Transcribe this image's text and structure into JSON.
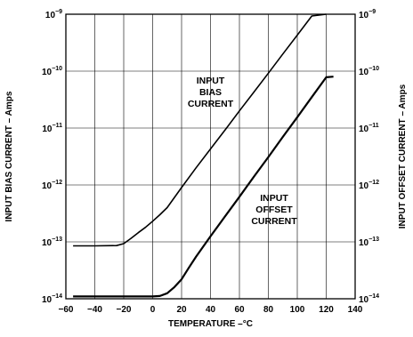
{
  "chart_data": {
    "type": "line",
    "xlabel": "TEMPERATURE –°C",
    "ylabel_left": "INPUT BIAS CURRENT – Amps",
    "ylabel_right": "INPUT OFFSET CURRENT – Amps",
    "xlim": [
      -60,
      140
    ],
    "ylim": [
      1e-14,
      1e-09
    ],
    "yscale": "log",
    "grid": true,
    "xticks": [
      -60,
      -40,
      -20,
      0,
      20,
      40,
      60,
      80,
      100,
      120,
      140
    ],
    "xtick_labels": [
      "−60",
      "−40",
      "−20",
      "0",
      "20",
      "40",
      "60",
      "80",
      "100",
      "120",
      "140"
    ],
    "yticks": [
      {
        "base": "10",
        "exp": "−9",
        "value": 1e-09
      },
      {
        "base": "10",
        "exp": "−10",
        "value": 1e-10
      },
      {
        "base": "10",
        "exp": "−11",
        "value": 1e-11
      },
      {
        "base": "10",
        "exp": "−12",
        "value": 1e-12
      },
      {
        "base": "10",
        "exp": "−13",
        "value": 1e-13
      },
      {
        "base": "10",
        "exp": "−14",
        "value": 1e-14
      }
    ],
    "series": [
      {
        "name": "INPUT BIAS CURRENT",
        "x": [
          -55,
          -40,
          -25,
          -20,
          -15,
          -10,
          -5,
          0,
          5,
          10,
          20,
          30,
          40,
          50,
          60,
          70,
          80,
          90,
          100,
          110,
          120
        ],
        "y": [
          8.5e-14,
          8.5e-14,
          8.6e-14,
          9.3e-14,
          1.15e-13,
          1.45e-13,
          1.8e-13,
          2.3e-13,
          3e-13,
          4e-13,
          9e-13,
          2e-12,
          4.3e-12,
          9.2e-12,
          2e-11,
          4.3e-11,
          9.2e-11,
          2e-10,
          4.3e-10,
          9.3e-10,
          1e-09
        ]
      },
      {
        "name": "INPUT OFFSET CURRENT",
        "x": [
          -55,
          -40,
          -20,
          0,
          5,
          10,
          15,
          20,
          25,
          30,
          40,
          50,
          60,
          70,
          80,
          90,
          100,
          110,
          120,
          125
        ],
        "y": [
          1.1e-14,
          1.1e-14,
          1.1e-14,
          1.1e-14,
          1.12e-14,
          1.25e-14,
          1.6e-14,
          2.2e-14,
          3.5e-14,
          5.5e-14,
          1.25e-13,
          2.8e-13,
          6.2e-13,
          1.4e-12,
          3.1e-12,
          7e-12,
          1.55e-11,
          3.5e-11,
          7.8e-11,
          8e-11
        ]
      }
    ],
    "annotations": [
      {
        "lines": [
          "INPUT",
          "BIAS",
          "CURRENT"
        ],
        "series": 0
      },
      {
        "lines": [
          "INPUT",
          "OFFSET",
          "CURRENT"
        ],
        "series": 1
      }
    ]
  }
}
